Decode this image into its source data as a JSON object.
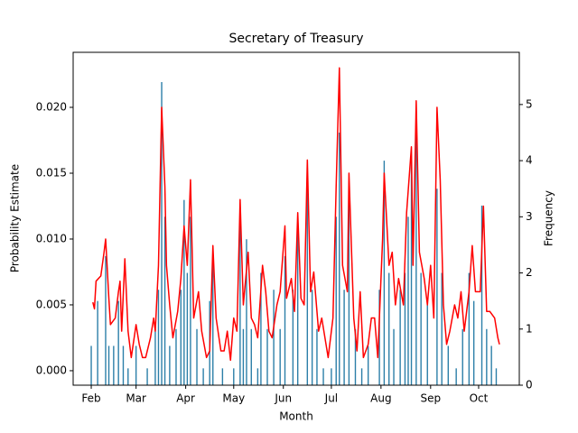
{
  "chart_data": {
    "type": "combo",
    "title": "Secretary of Treasury",
    "xlabel": "Month",
    "ylabel": "Probability Estimate",
    "y2label": "Frequency",
    "xlim": [
      -11.3,
      267.4
    ],
    "xticks": [
      {
        "value": 0,
        "label": "Feb"
      },
      {
        "value": 28,
        "label": "Mar"
      },
      {
        "value": 59,
        "label": "Apr"
      },
      {
        "value": 89,
        "label": "May"
      },
      {
        "value": 120,
        "label": "Jun"
      },
      {
        "value": 150,
        "label": "Jul"
      },
      {
        "value": 181,
        "label": "Aug"
      },
      {
        "value": 212,
        "label": "Sep"
      },
      {
        "value": 242,
        "label": "Oct"
      }
    ],
    "ylim": [
      -0.0011,
      0.02418
    ],
    "yticks": [
      {
        "value": 0,
        "label": "0.000"
      },
      {
        "value": 0.005,
        "label": "0.005"
      },
      {
        "value": 0.01,
        "label": "0.010"
      },
      {
        "value": 0.015,
        "label": "0.015"
      },
      {
        "value": 0.02,
        "label": "0.020"
      }
    ],
    "y2lim": [
      0,
      5.93
    ],
    "y2ticks": [
      0,
      1,
      2,
      3,
      4,
      5
    ],
    "series": [
      {
        "type": "bar",
        "axis": "y2",
        "color": "#2c7fa8",
        "x": [
          0,
          4,
          9,
          11,
          14,
          17,
          20,
          23,
          28,
          35,
          40,
          42,
          44,
          46,
          49,
          53,
          56,
          58,
          60,
          62,
          66,
          70,
          74,
          76,
          82,
          89,
          93,
          95,
          97,
          100,
          104,
          106,
          110,
          114,
          118,
          121,
          126,
          129,
          135,
          138,
          141,
          145,
          150,
          153,
          155,
          158,
          161,
          165,
          169,
          173,
          180,
          183,
          186,
          189,
          193,
          196,
          198,
          200,
          203,
          206,
          210,
          216,
          219,
          223,
          228,
          232,
          236,
          239,
          244,
          247,
          250,
          253
        ],
        "values": [
          0.7,
          1.5,
          2.3,
          0.7,
          0.7,
          1.5,
          0.7,
          0.3,
          0.7,
          0.3,
          1.0,
          1.7,
          5.4,
          3.0,
          0.7,
          1.0,
          1.7,
          3.3,
          2.0,
          3.0,
          1.0,
          0.3,
          1.5,
          2.3,
          0.3,
          0.3,
          3.0,
          1.0,
          2.6,
          1.0,
          0.3,
          2.0,
          1.0,
          1.7,
          1.0,
          2.3,
          1.7,
          3.0,
          3.7,
          1.7,
          1.0,
          0.3,
          0.3,
          3.0,
          4.5,
          1.7,
          3.5,
          1.0,
          0.3,
          0.7,
          1.7,
          4.0,
          2.0,
          1.0,
          1.7,
          2.0,
          3.0,
          4.0,
          4.6,
          2.0,
          1.5,
          3.5,
          2.0,
          0.7,
          0.3,
          1.0,
          2.0,
          1.5,
          3.2,
          1.0,
          0.7,
          0.3
        ]
      },
      {
        "type": "line",
        "color": "#ff0000",
        "x": [
          1,
          2,
          3,
          6,
          8,
          9,
          11,
          12,
          15,
          17,
          18,
          19,
          21,
          23,
          25,
          28,
          30,
          32,
          34,
          37,
          39,
          40,
          42,
          44,
          46,
          47,
          49,
          51,
          54,
          56,
          58,
          60,
          62,
          64,
          67,
          69,
          72,
          74,
          76,
          78,
          81,
          83,
          85,
          87,
          89,
          91,
          93,
          95,
          98,
          100,
          102,
          104,
          107,
          109,
          111,
          113,
          116,
          118,
          121,
          122,
          125,
          127,
          129,
          131,
          133,
          135,
          137,
          139,
          142,
          144,
          146,
          148,
          151,
          153,
          155,
          157,
          160,
          161,
          164,
          166,
          168,
          170,
          173,
          175,
          177,
          179,
          182,
          183,
          186,
          188,
          190,
          192,
          195,
          197,
          200,
          201,
          203,
          205,
          208,
          210,
          212,
          214,
          216,
          218,
          220,
          222,
          224,
          227,
          229,
          231,
          233,
          236,
          238,
          240,
          243,
          245,
          247,
          249,
          252,
          254,
          255
        ],
        "values": [
          0.0052,
          0.0047,
          0.0068,
          0.0072,
          0.009,
          0.01,
          0.0055,
          0.0035,
          0.004,
          0.006,
          0.0068,
          0.003,
          0.0085,
          0.003,
          0.001,
          0.0035,
          0.002,
          0.001,
          0.001,
          0.0025,
          0.004,
          0.003,
          0.008,
          0.02,
          0.014,
          0.008,
          0.005,
          0.0025,
          0.0045,
          0.007,
          0.011,
          0.008,
          0.0145,
          0.004,
          0.006,
          0.003,
          0.001,
          0.0015,
          0.0095,
          0.004,
          0.0015,
          0.0015,
          0.003,
          0.0008,
          0.004,
          0.003,
          0.013,
          0.005,
          0.009,
          0.004,
          0.0035,
          0.0025,
          0.008,
          0.006,
          0.003,
          0.0025,
          0.005,
          0.006,
          0.011,
          0.0055,
          0.007,
          0.0045,
          0.012,
          0.0055,
          0.005,
          0.016,
          0.006,
          0.0075,
          0.003,
          0.004,
          0.0025,
          0.001,
          0.004,
          0.014,
          0.023,
          0.008,
          0.006,
          0.015,
          0.004,
          0.0015,
          0.006,
          0.001,
          0.002,
          0.004,
          0.004,
          0.001,
          0.01,
          0.015,
          0.008,
          0.009,
          0.005,
          0.007,
          0.005,
          0.012,
          0.017,
          0.008,
          0.0205,
          0.009,
          0.007,
          0.005,
          0.008,
          0.004,
          0.02,
          0.0145,
          0.005,
          0.002,
          0.003,
          0.005,
          0.004,
          0.006,
          0.003,
          0.006,
          0.0095,
          0.006,
          0.006,
          0.0125,
          0.0045,
          0.0045,
          0.004,
          0.0025,
          0.002
        ]
      }
    ]
  }
}
